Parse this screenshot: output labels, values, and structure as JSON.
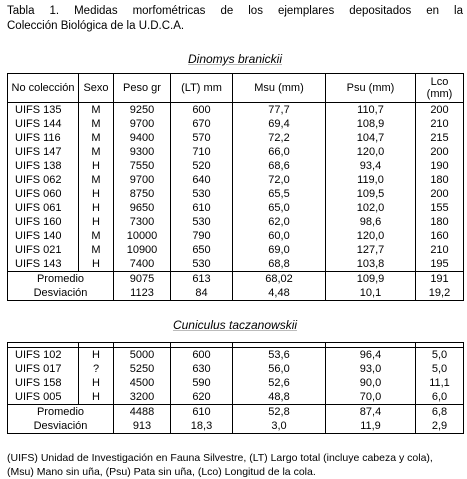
{
  "caption": [
    "Tabla 1. Medidas morfométricas de los ejemplares depositados en la",
    "Colección Biológica de la U.D.C.A."
  ],
  "table1": {
    "title": "Dinomys branickii",
    "headers": [
      "No colección",
      "Sexo",
      "Peso gr",
      "(LT) mm",
      "Msu (mm)",
      "Psu (mm)",
      "Lco (mm)"
    ],
    "rows": [
      [
        "UIFS 135",
        "M",
        "9250",
        "600",
        "77,7",
        "110,7",
        "200"
      ],
      [
        "UIFS 144",
        "M",
        "9700",
        "670",
        "69,4",
        "108,9",
        "210"
      ],
      [
        "UIFS 116",
        "M",
        "9400",
        "570",
        "72,2",
        "104,7",
        "215"
      ],
      [
        "UIFS 147",
        "M",
        "9300",
        "710",
        "66,0",
        "120,0",
        "200"
      ],
      [
        "UIFS 138",
        "H",
        "7550",
        "520",
        "68,6",
        "93,4",
        "190"
      ],
      [
        "UIFS 062",
        "M",
        "9700",
        "640",
        "72,0",
        "119,0",
        "180"
      ],
      [
        "UIFS 060",
        "H",
        "8750",
        "530",
        "65,5",
        "109,5",
        "200"
      ],
      [
        "UIFS 061",
        "H",
        "9650",
        "610",
        "65,0",
        "102,0",
        "155"
      ],
      [
        "UIFS 160",
        "H",
        "7300",
        "530",
        "62,0",
        "98,6",
        "180"
      ],
      [
        "UIFS 140",
        "M",
        "10000",
        "790",
        "60,0",
        "120,0",
        "160"
      ],
      [
        "UIFS 021",
        "M",
        "10900",
        "650",
        "69,0",
        "127,7",
        "210"
      ],
      [
        "UIFS 143",
        "H",
        "7400",
        "530",
        "68,8",
        "103,8",
        "195"
      ]
    ],
    "summary": [
      [
        "Promedio",
        "9075",
        "613",
        "68,02",
        "109,9",
        "191"
      ],
      [
        "Desviación",
        "1123",
        "84",
        "4,48",
        "10,1",
        "19,2"
      ]
    ]
  },
  "table2": {
    "title": "Cuniculus taczanowskii",
    "rows": [
      [
        "UIFS 102",
        "H",
        "5000",
        "600",
        "53,6",
        "96,4",
        "5,0"
      ],
      [
        "UIFS 017",
        "?",
        "5250",
        "630",
        "56,0",
        "93,0",
        "5,0"
      ],
      [
        "UIFS 158",
        "H",
        "4500",
        "590",
        "52,6",
        "90,0",
        "11,1"
      ],
      [
        "UIFS 005",
        "H",
        "3200",
        "620",
        "48,8",
        "70,0",
        "6,0"
      ]
    ],
    "summary": [
      [
        "Promedio",
        "4488",
        "610",
        "52,8",
        "87,4",
        "6,8"
      ],
      [
        "Desviación",
        "913",
        "18,3",
        "3,0",
        "11,9",
        "2,9"
      ]
    ]
  },
  "footnote": [
    "(UIFS) Unidad de Investigación en Fauna Silvestre, (LT) Largo total (incluye cabeza y cola),",
    "(Msu) Mano sin uña, (Psu) Pata sin uña, (Lco) Longitud de la cola."
  ]
}
